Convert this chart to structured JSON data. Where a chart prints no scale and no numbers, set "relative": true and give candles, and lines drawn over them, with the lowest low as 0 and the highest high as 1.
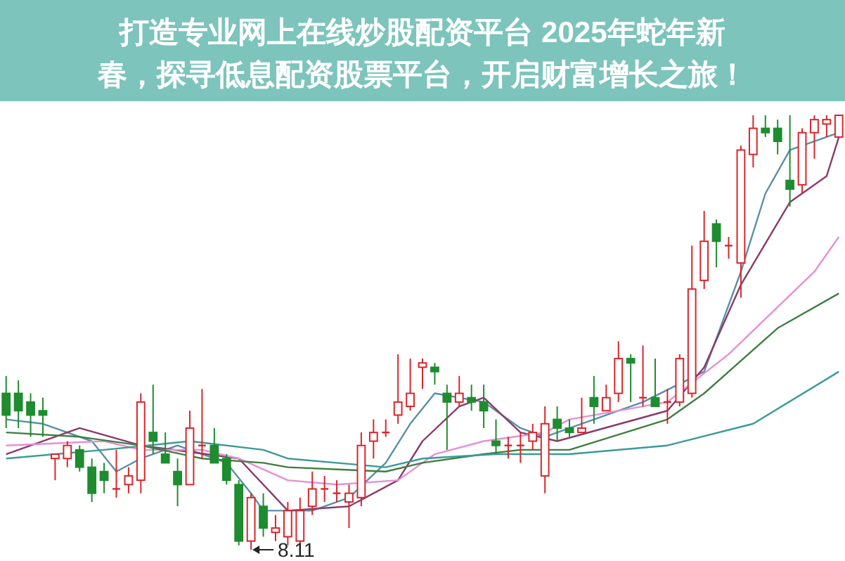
{
  "chart_data": {
    "type": "candlestick",
    "title": "打造专业网上在线炒股配资平台 2025年蛇年新春，探寻低息配资股票平台，开启财富增长之旅！",
    "relative": true,
    "categories": [
      null,
      null,
      null,
      null,
      null,
      null,
      null,
      null,
      null,
      null,
      null,
      null,
      null,
      null,
      null,
      null,
      null,
      null,
      null,
      null,
      null,
      null,
      null,
      null,
      null,
      null,
      null,
      null,
      null,
      null,
      null,
      null,
      null,
      null,
      null,
      null,
      null,
      null,
      null,
      null,
      null,
      null,
      null,
      null,
      null,
      null,
      null,
      null,
      null,
      null,
      null,
      null,
      null,
      null,
      null,
      null,
      null,
      null,
      null,
      null,
      null,
      null,
      null,
      null,
      null,
      null,
      null,
      null,
      null
    ],
    "ohlc": [
      [
        0.36,
        0.4,
        0.28,
        0.31
      ],
      [
        0.36,
        0.39,
        0.28,
        0.32
      ],
      [
        0.34,
        0.36,
        0.26,
        0.31
      ],
      [
        0.32,
        0.35,
        0.26,
        0.31
      ],
      [
        0.21,
        0.22,
        0.16,
        0.22
      ],
      [
        0.21,
        0.25,
        0.19,
        0.24
      ],
      [
        0.23,
        0.24,
        0.18,
        0.19
      ],
      [
        0.19,
        0.21,
        0.11,
        0.13
      ],
      [
        0.18,
        0.2,
        0.13,
        0.16
      ],
      [
        0.14,
        0.23,
        0.12,
        0.14
      ],
      [
        0.15,
        0.19,
        0.13,
        0.17
      ],
      [
        0.16,
        0.36,
        0.13,
        0.34
      ],
      [
        0.27,
        0.38,
        0.22,
        0.25
      ],
      [
        0.22,
        0.27,
        0.2,
        0.2
      ],
      [
        0.18,
        0.21,
        0.1,
        0.15
      ],
      [
        0.15,
        0.32,
        0.15,
        0.28
      ],
      [
        0.24,
        0.37,
        0.21,
        0.24
      ],
      [
        0.24,
        0.28,
        0.2,
        0.2
      ],
      [
        0.21,
        0.22,
        0.15,
        0.16
      ],
      [
        0.15,
        0.16,
        0.01,
        0.02
      ],
      [
        0.02,
        0.13,
        0.0,
        0.12
      ],
      [
        0.1,
        0.13,
        0.03,
        0.05
      ],
      [
        0.04,
        0.08,
        0.02,
        0.05
      ],
      [
        0.03,
        0.11,
        0.01,
        0.09
      ],
      [
        0.02,
        0.12,
        0.01,
        0.09
      ],
      [
        0.1,
        0.18,
        0.08,
        0.14
      ],
      [
        0.14,
        0.17,
        0.11,
        0.14
      ],
      [
        0.13,
        0.16,
        0.11,
        0.13
      ],
      [
        0.11,
        0.15,
        0.05,
        0.13
      ],
      [
        0.12,
        0.27,
        0.1,
        0.24
      ],
      [
        0.25,
        0.3,
        0.21,
        0.27
      ],
      [
        0.27,
        0.3,
        0.26,
        0.27
      ],
      [
        0.31,
        0.45,
        0.29,
        0.34
      ],
      [
        0.33,
        0.44,
        0.32,
        0.36
      ],
      [
        0.42,
        0.44,
        0.37,
        0.43
      ],
      [
        0.42,
        0.43,
        0.38,
        0.41
      ],
      [
        0.36,
        0.38,
        0.23,
        0.34
      ],
      [
        0.34,
        0.4,
        0.33,
        0.36
      ],
      [
        0.35,
        0.38,
        0.32,
        0.34
      ],
      [
        0.34,
        0.38,
        0.28,
        0.32
      ],
      [
        0.25,
        0.3,
        0.22,
        0.24
      ],
      [
        0.24,
        0.26,
        0.21,
        0.24
      ],
      [
        0.24,
        0.27,
        0.2,
        0.24
      ],
      [
        0.25,
        0.29,
        0.23,
        0.27
      ],
      [
        0.17,
        0.33,
        0.13,
        0.29
      ],
      [
        0.3,
        0.33,
        0.25,
        0.28
      ],
      [
        0.28,
        0.3,
        0.26,
        0.27
      ],
      [
        0.27,
        0.35,
        0.27,
        0.28
      ],
      [
        0.35,
        0.4,
        0.29,
        0.33
      ],
      [
        0.32,
        0.38,
        0.32,
        0.35
      ],
      [
        0.36,
        0.48,
        0.34,
        0.44
      ],
      [
        0.44,
        0.45,
        0.34,
        0.43
      ],
      [
        0.35,
        0.47,
        0.33,
        0.35
      ],
      [
        0.35,
        0.44,
        0.33,
        0.33
      ],
      [
        0.34,
        0.37,
        0.29,
        0.34
      ],
      [
        0.34,
        0.45,
        0.33,
        0.44
      ],
      [
        0.36,
        0.7,
        0.35,
        0.6
      ],
      [
        0.62,
        0.78,
        0.6,
        0.71
      ],
      [
        0.75,
        0.76,
        0.65,
        0.71
      ],
      [
        0.7,
        0.72,
        0.67,
        0.7
      ],
      [
        0.66,
        0.93,
        0.58,
        0.92
      ],
      [
        0.91,
        1.0,
        0.88,
        0.97
      ],
      [
        0.97,
        1.0,
        0.95,
        0.96
      ],
      [
        0.97,
        0.99,
        0.91,
        0.94
      ],
      [
        0.85,
        1.0,
        0.79,
        0.83
      ],
      [
        0.84,
        0.97,
        0.82,
        0.96
      ],
      [
        0.96,
        1.0,
        0.9,
        0.99
      ],
      [
        0.98,
        1.0,
        0.95,
        0.99
      ],
      [
        0.95,
        1.0,
        0.95,
        1.0
      ]
    ],
    "series": [
      {
        "type": "line",
        "color": "#5a8fa8",
        "values": [
          0.3,
          null,
          null,
          0.29,
          null,
          null,
          null,
          0.25,
          null,
          0.18,
          null,
          0.21,
          null,
          null,
          0.24,
          null,
          null,
          0.21,
          0.2,
          null,
          0.13,
          0.09,
          null,
          null,
          null,
          0.09,
          null,
          null,
          0.12,
          null,
          null,
          0.2,
          null,
          0.29,
          null,
          0.36,
          null,
          null,
          null,
          0.34,
          null,
          null,
          0.28,
          null,
          0.26,
          null,
          null,
          null,
          null,
          null,
          null,
          null,
          0.34,
          null,
          null,
          null,
          null,
          0.41,
          null,
          null,
          0.64,
          null,
          0.82,
          null,
          0.92,
          null,
          null,
          null,
          0.96
        ]
      },
      {
        "type": "line",
        "color": "#8a3a6a",
        "values": [
          0.22,
          null,
          null,
          null,
          null,
          null,
          0.28,
          null,
          null,
          null,
          null,
          0.24,
          null,
          null,
          null,
          null,
          null,
          null,
          null,
          0.21,
          null,
          null,
          null,
          0.09,
          null,
          null,
          null,
          null,
          0.1,
          null,
          null,
          null,
          0.16,
          null,
          0.25,
          null,
          null,
          0.33,
          null,
          0.35,
          null,
          null,
          0.27,
          null,
          null,
          0.25,
          null,
          null,
          null,
          null,
          null,
          null,
          null,
          null,
          0.32,
          null,
          null,
          0.42,
          null,
          null,
          0.61,
          null,
          null,
          null,
          0.8,
          null,
          null,
          0.86,
          0.95
        ]
      },
      {
        "type": "line",
        "color": "#e68fd6",
        "values": [
          0.24,
          null,
          null,
          null,
          null,
          null,
          null,
          null,
          0.25,
          null,
          null,
          0.23,
          null,
          null,
          null,
          null,
          0.23,
          null,
          null,
          0.21,
          null,
          null,
          null,
          0.16,
          null,
          null,
          null,
          0.15,
          null,
          null,
          null,
          null,
          0.16,
          null,
          null,
          0.22,
          null,
          null,
          null,
          0.25,
          null,
          null,
          null,
          null,
          0.27,
          null,
          0.3,
          null,
          null,
          null,
          null,
          null,
          null,
          null,
          0.34,
          null,
          null,
          null,
          null,
          0.45,
          null,
          null,
          null,
          null,
          null,
          null,
          0.64,
          null,
          0.72
        ]
      },
      {
        "type": "line",
        "color": "#3f7f3f",
        "values": [
          0.27,
          null,
          null,
          null,
          null,
          null,
          0.26,
          null,
          null,
          null,
          null,
          0.24,
          null,
          null,
          null,
          null,
          0.21,
          null,
          null,
          null,
          null,
          0.2,
          null,
          0.19,
          null,
          null,
          null,
          null,
          null,
          null,
          null,
          0.18,
          null,
          null,
          0.2,
          null,
          null,
          null,
          null,
          0.22,
          null,
          null,
          0.23,
          null,
          null,
          null,
          0.23,
          null,
          null,
          null,
          null,
          null,
          null,
          null,
          0.3,
          null,
          null,
          0.36,
          null,
          null,
          null,
          null,
          null,
          0.51,
          null,
          null,
          null,
          null,
          0.59
        ]
      },
      {
        "type": "line",
        "color": "#3a9a9a",
        "values": [
          0.21,
          null,
          null,
          null,
          null,
          null,
          null,
          null,
          0.23,
          null,
          null,
          null,
          null,
          null,
          null,
          0.25,
          null,
          null,
          null,
          null,
          null,
          0.23,
          null,
          0.21,
          null,
          null,
          null,
          null,
          null,
          null,
          null,
          0.19,
          null,
          null,
          0.21,
          null,
          null,
          null,
          null,
          null,
          0.22,
          null,
          null,
          null,
          null,
          null,
          0.22,
          null,
          null,
          null,
          null,
          null,
          null,
          null,
          0.24,
          null,
          null,
          null,
          null,
          null,
          null,
          0.29,
          null,
          null,
          null,
          null,
          null,
          null,
          0.41
        ]
      }
    ],
    "annotations": [
      "8.11"
    ]
  }
}
